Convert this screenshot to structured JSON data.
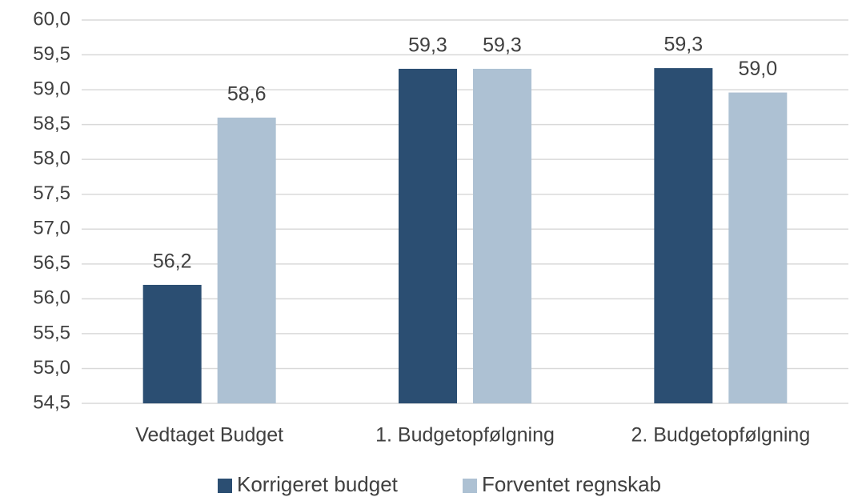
{
  "chart_data": {
    "type": "bar",
    "categories": [
      "Vedtaget Budget",
      "1. Budgetopfølgning",
      "2. Budgetopfølgning"
    ],
    "series": [
      {
        "name": "Korrigeret budget",
        "color": "#2b4e72",
        "values": [
          56.2,
          59.3,
          59.31
        ],
        "value_labels": [
          "56,2",
          "59,3",
          "59,3"
        ]
      },
      {
        "name": "Forventet regnskab",
        "color": "#adc1d3",
        "values": [
          58.6,
          59.3,
          58.96
        ],
        "value_labels": [
          "58,6",
          "59,3",
          "59,0"
        ]
      }
    ],
    "ylim": [
      54.5,
      60.0
    ],
    "yticks": [
      {
        "value": 54.5,
        "label": "54,5"
      },
      {
        "value": 55.0,
        "label": "55,0"
      },
      {
        "value": 55.5,
        "label": "55,5"
      },
      {
        "value": 56.0,
        "label": "56,0"
      },
      {
        "value": 56.5,
        "label": "56,5"
      },
      {
        "value": 57.0,
        "label": "57,0"
      },
      {
        "value": 57.5,
        "label": "57,5"
      },
      {
        "value": 58.0,
        "label": "58,0"
      },
      {
        "value": 58.5,
        "label": "58,5"
      },
      {
        "value": 59.0,
        "label": "59,0"
      },
      {
        "value": 59.5,
        "label": "59,5"
      },
      {
        "value": 60.0,
        "label": "60,0"
      }
    ],
    "grid": true,
    "legend": "bottom"
  }
}
